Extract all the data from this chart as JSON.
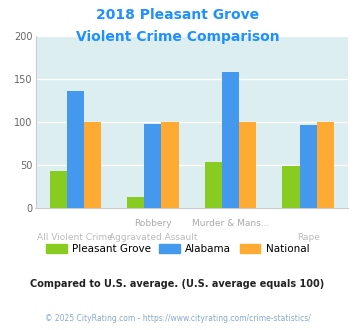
{
  "title_line1": "2018 Pleasant Grove",
  "title_line2": "Violent Crime Comparison",
  "title_color": "#1e90ff",
  "pleasant_grove": [
    43,
    13,
    54,
    49
  ],
  "alabama": [
    136,
    98,
    158,
    97
  ],
  "national": [
    100,
    100,
    100,
    100
  ],
  "pleasant_grove_color": "#88cc22",
  "alabama_color": "#4499ee",
  "national_color": "#ffaa33",
  "bg_color": "#ddeef0",
  "ylim": [
    0,
    200
  ],
  "yticks": [
    0,
    50,
    100,
    150,
    200
  ],
  "legend_labels": [
    "Pleasant Grove",
    "Alabama",
    "National"
  ],
  "note_text": "Compared to U.S. average. (U.S. average equals 100)",
  "note_color": "#222222",
  "footer_text": "© 2025 CityRating.com - https://www.cityrating.com/crime-statistics/",
  "footer_color": "#88aacc",
  "bar_width": 0.22,
  "top_xlabels": {
    "1": "Robbery",
    "2": "Murder & Mans..."
  },
  "bottom_xlabels": {
    "0": "All Violent Crime",
    "1": "Aggravated Assault",
    "3": "Rape"
  },
  "top_xlabel_color": "#aaaaaa",
  "bottom_xlabel_color": "#bbbbbb"
}
